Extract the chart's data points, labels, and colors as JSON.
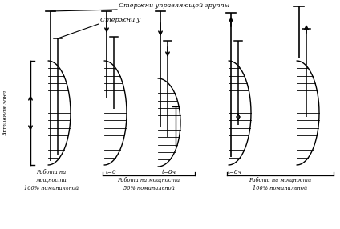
{
  "bg_color": "#ffffff",
  "line_color": "#000000",
  "label_upravl": "Стержни управляющей группы",
  "label_u": "Стержни у",
  "label_aktiv": "Активная зона",
  "label_100nom_left": "Работа на\nмощности\n100% номинальной",
  "label_t0": "t=0",
  "label_t8_50": "t=8ч",
  "label_t8_100": "t=8ч",
  "label_50nom": "Работа на мощности\n50% номинальной",
  "label_100nom_right": "Работа на мощности\n100% номинальной"
}
